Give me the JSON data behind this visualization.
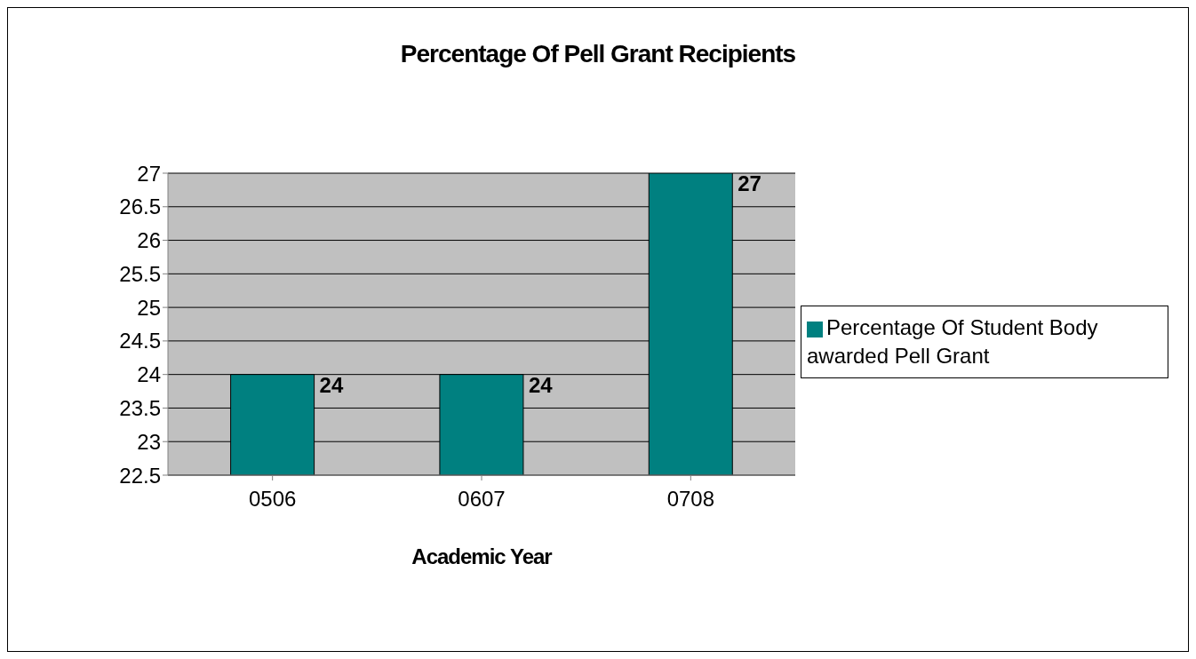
{
  "chart_data": {
    "type": "bar",
    "title": "Percentage Of Pell Grant Recipients",
    "xlabel": "Academic Year",
    "categories": [
      "0506",
      "0607",
      "0708"
    ],
    "series": [
      {
        "name": "Percentage Of Student Body awarded Pell Grant",
        "color": "#008080",
        "values": [
          24,
          24,
          27
        ]
      }
    ],
    "ylim": [
      22.5,
      27
    ],
    "yticks": [
      22.5,
      23,
      23.5,
      24,
      24.5,
      25,
      25.5,
      26,
      26.5,
      27
    ],
    "grid": "y",
    "legend": "right",
    "data_labels": true
  }
}
